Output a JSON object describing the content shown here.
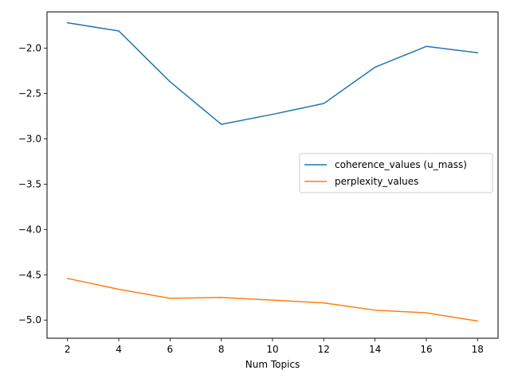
{
  "chart_data": {
    "type": "line",
    "title": "",
    "xlabel": "Num Topics",
    "ylabel": "",
    "xlim": [
      1.2,
      18.8
    ],
    "ylim": [
      -5.2,
      -1.6
    ],
    "xticks": [
      2,
      4,
      6,
      8,
      10,
      12,
      14,
      16,
      18
    ],
    "yticks": [
      -5.0,
      -4.5,
      -4.0,
      -3.5,
      -3.0,
      -2.5,
      -2.0
    ],
    "ytick_labels": [
      "−5.0",
      "−4.5",
      "−4.0",
      "−3.5",
      "−3.0",
      "−2.5",
      "−2.0"
    ],
    "x": [
      2,
      4,
      6,
      8,
      10,
      12,
      14,
      16,
      18
    ],
    "series": [
      {
        "name": "coherence_values (u_mass)",
        "color": "#1f77b4",
        "values": [
          -1.72,
          -1.81,
          -2.37,
          -2.84,
          -2.73,
          -2.61,
          -2.21,
          -1.98,
          -2.05
        ]
      },
      {
        "name": "perplexity_values",
        "color": "#ff7f0e",
        "values": [
          -4.54,
          -4.66,
          -4.76,
          -4.75,
          -4.78,
          -4.81,
          -4.89,
          -4.92,
          -5.01
        ]
      }
    ],
    "grid": false,
    "legend_position": "center-right"
  }
}
